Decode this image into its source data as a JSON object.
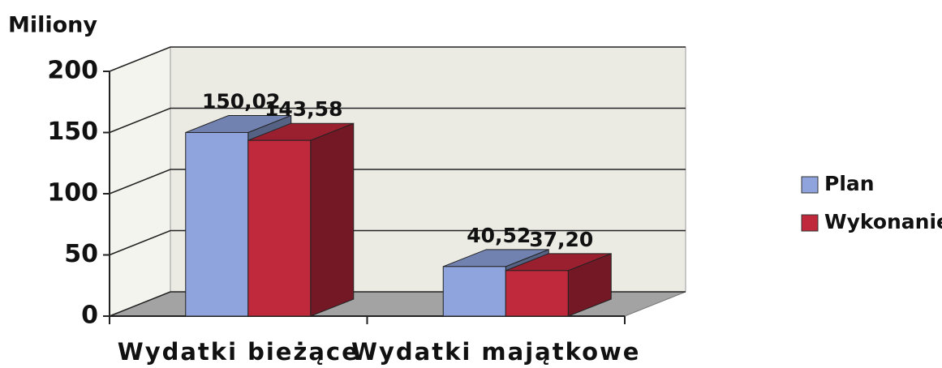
{
  "chart_data": {
    "type": "bar3d",
    "y_label": "Miliony",
    "categories": [
      "Wydatki bieżące",
      "Wydatki majątkowe"
    ],
    "series": [
      {
        "name": "Plan",
        "color": "#8fa3dc",
        "values": [
          150.02,
          40.52
        ],
        "value_labels": [
          "150,02",
          "40,52"
        ]
      },
      {
        "name": "Wykonanie",
        "color": "#c0283c",
        "values": [
          143.58,
          37.2
        ],
        "value_labels": [
          "143,58",
          "37,20"
        ]
      }
    ],
    "ylim": [
      0,
      200
    ],
    "yticks": [
      0,
      50,
      100,
      150,
      200
    ],
    "grid": true,
    "legend": "right"
  }
}
